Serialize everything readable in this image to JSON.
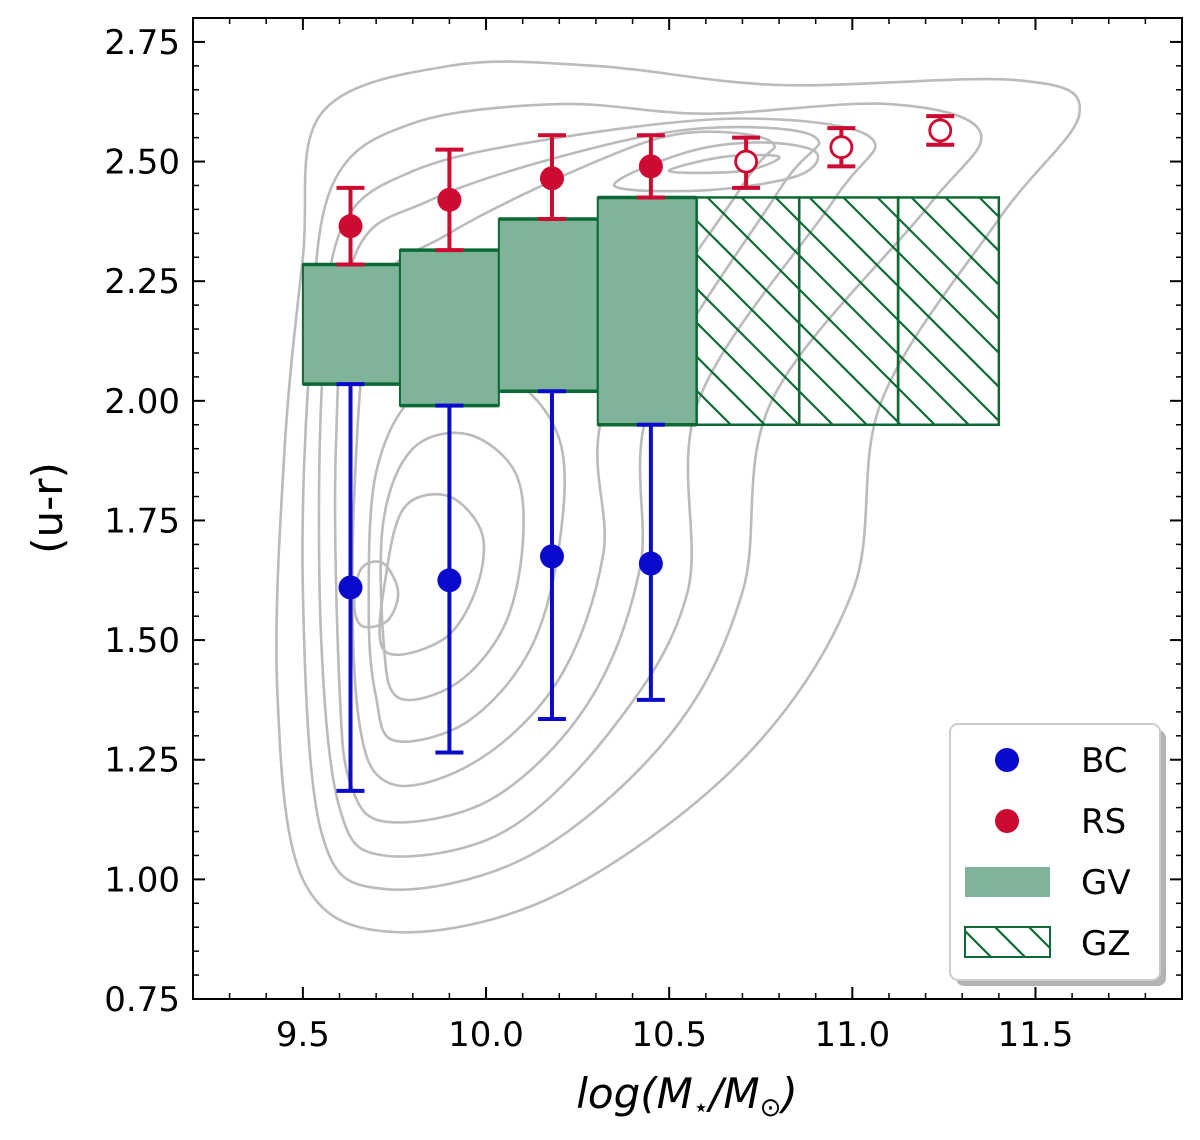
{
  "chart_data": {
    "type": "scatter",
    "title": "",
    "xlabel": "log(M⋆/M⊙)",
    "xlabel_parts": {
      "pre": "log(M",
      "sub1": "⋆",
      "mid": "/M",
      "sub2": "⊙",
      "post": ")"
    },
    "ylabel": "(u-r)",
    "xlim": [
      9.2,
      11.9
    ],
    "ylim": [
      0.75,
      2.8
    ],
    "xticks": [
      9.5,
      10.0,
      10.5,
      11.0,
      11.5
    ],
    "xtick_labels": [
      "9.5",
      "10.0",
      "10.5",
      "11.0",
      "11.5"
    ],
    "yticks": [
      0.75,
      1.0,
      1.25,
      1.5,
      1.75,
      2.0,
      2.25,
      2.5,
      2.75
    ],
    "ytick_labels": [
      "0.75",
      "1.00",
      "1.25",
      "1.50",
      "1.75",
      "2.00",
      "2.25",
      "2.50",
      "2.75"
    ],
    "grid": false,
    "legend_position": "bottom-right",
    "colors": {
      "BC": "#0a0acc",
      "RS": "#cc0a32",
      "GV_fill": "#7fb39a",
      "GV_edge": "#0b6a34",
      "contour": "#bbbbbb"
    },
    "series": [
      {
        "name": "BC",
        "points": [
          {
            "x": 9.63,
            "y": 1.61,
            "lo": 1.185,
            "hi": 2.035
          },
          {
            "x": 9.9,
            "y": 1.625,
            "lo": 1.265,
            "hi": 1.99
          },
          {
            "x": 10.18,
            "y": 1.675,
            "lo": 1.335,
            "hi": 2.02
          },
          {
            "x": 10.45,
            "y": 1.66,
            "lo": 1.375,
            "hi": 1.95
          }
        ]
      },
      {
        "name": "RS",
        "points": [
          {
            "x": 9.63,
            "y": 2.365,
            "lo": 2.285,
            "hi": 2.445,
            "open": false
          },
          {
            "x": 9.9,
            "y": 2.42,
            "lo": 2.315,
            "hi": 2.525,
            "open": false
          },
          {
            "x": 10.18,
            "y": 2.465,
            "lo": 2.38,
            "hi": 2.555,
            "open": false
          },
          {
            "x": 10.45,
            "y": 2.49,
            "lo": 2.425,
            "hi": 2.555,
            "open": false
          },
          {
            "x": 10.71,
            "y": 2.5,
            "lo": 2.445,
            "hi": 2.55,
            "open": true
          },
          {
            "x": 10.97,
            "y": 2.53,
            "lo": 2.49,
            "hi": 2.57,
            "open": true
          },
          {
            "x": 11.24,
            "y": 2.565,
            "lo": 2.535,
            "hi": 2.595,
            "open": true
          }
        ]
      },
      {
        "name": "GV",
        "bins": [
          {
            "x0": 9.5,
            "x1": 9.765,
            "ylo": 2.035,
            "yhi": 2.285
          },
          {
            "x0": 9.765,
            "x1": 10.035,
            "ylo": 1.99,
            "yhi": 2.315
          },
          {
            "x0": 10.035,
            "x1": 10.305,
            "ylo": 2.02,
            "yhi": 2.38
          },
          {
            "x0": 10.305,
            "x1": 10.575,
            "ylo": 1.95,
            "yhi": 2.425
          }
        ]
      },
      {
        "name": "GZ",
        "bins": [
          {
            "x0": 10.575,
            "x1": 10.855,
            "ylo": 1.95,
            "yhi": 2.425
          },
          {
            "x0": 10.855,
            "x1": 11.125,
            "ylo": 1.95,
            "yhi": 2.425
          },
          {
            "x0": 11.125,
            "x1": 11.4,
            "ylo": 1.95,
            "yhi": 2.425
          }
        ]
      }
    ],
    "contours": [
      [
        [
          9.75,
          0.89
        ],
        [
          10.2,
          0.97
        ],
        [
          10.7,
          1.25
        ],
        [
          11.0,
          1.6
        ],
        [
          11.08,
          2.0
        ],
        [
          11.4,
          2.38
        ],
        [
          11.62,
          2.6
        ],
        [
          11.45,
          2.67
        ],
        [
          10.8,
          2.66
        ],
        [
          10.3,
          2.7
        ],
        [
          9.9,
          2.7
        ],
        [
          9.55,
          2.6
        ],
        [
          9.5,
          2.3
        ],
        [
          9.45,
          1.9
        ],
        [
          9.43,
          1.4
        ],
        [
          9.5,
          1.0
        ]
      ],
      [
        [
          9.72,
          0.98
        ],
        [
          10.12,
          1.05
        ],
        [
          10.5,
          1.3
        ],
        [
          10.7,
          1.6
        ],
        [
          10.78,
          2.0
        ],
        [
          11.2,
          2.4
        ],
        [
          11.35,
          2.56
        ],
        [
          11.1,
          2.62
        ],
        [
          10.6,
          2.6
        ],
        [
          10.2,
          2.62
        ],
        [
          9.8,
          2.58
        ],
        [
          9.58,
          2.45
        ],
        [
          9.52,
          2.1
        ],
        [
          9.5,
          1.6
        ],
        [
          9.55,
          1.1
        ]
      ],
      [
        [
          9.72,
          1.05
        ],
        [
          10.05,
          1.1
        ],
        [
          10.35,
          1.32
        ],
        [
          10.55,
          1.6
        ],
        [
          10.58,
          2.0
        ],
        [
          10.95,
          2.42
        ],
        [
          11.05,
          2.55
        ],
        [
          10.7,
          2.59
        ],
        [
          10.2,
          2.55
        ],
        [
          9.8,
          2.48
        ],
        [
          9.6,
          2.35
        ],
        [
          9.55,
          2.0
        ],
        [
          9.55,
          1.5
        ],
        [
          9.6,
          1.15
        ]
      ],
      [
        [
          9.73,
          1.12
        ],
        [
          10.02,
          1.17
        ],
        [
          10.28,
          1.37
        ],
        [
          10.42,
          1.65
        ],
        [
          10.45,
          2.0
        ],
        [
          10.8,
          2.44
        ],
        [
          10.9,
          2.55
        ],
        [
          10.6,
          2.57
        ],
        [
          10.25,
          2.52
        ],
        [
          9.85,
          2.42
        ],
        [
          9.64,
          2.3
        ],
        [
          9.59,
          1.9
        ],
        [
          9.6,
          1.4
        ],
        [
          9.63,
          1.2
        ]
      ],
      [
        [
          9.74,
          1.2
        ],
        [
          9.98,
          1.25
        ],
        [
          10.2,
          1.42
        ],
        [
          10.32,
          1.68
        ],
        [
          10.33,
          2.0
        ],
        [
          10.7,
          2.45
        ],
        [
          10.78,
          2.54
        ],
        [
          10.55,
          2.56
        ],
        [
          10.3,
          2.5
        ],
        [
          9.9,
          2.35
        ],
        [
          9.7,
          2.22
        ],
        [
          9.64,
          1.8
        ],
        [
          9.65,
          1.35
        ]
      ],
      [
        [
          9.75,
          1.29
        ],
        [
          9.95,
          1.33
        ],
        [
          10.12,
          1.48
        ],
        [
          10.2,
          1.7
        ],
        [
          10.2,
          1.92
        ],
        [
          10.05,
          2.05
        ],
        [
          9.82,
          2.02
        ],
        [
          9.7,
          1.85
        ],
        [
          9.68,
          1.55
        ],
        [
          9.7,
          1.38
        ]
      ],
      [
        [
          9.76,
          1.38
        ],
        [
          9.92,
          1.41
        ],
        [
          10.05,
          1.53
        ],
        [
          10.1,
          1.7
        ],
        [
          10.08,
          1.85
        ],
        [
          9.95,
          1.93
        ],
        [
          9.8,
          1.9
        ],
        [
          9.72,
          1.75
        ],
        [
          9.72,
          1.5
        ]
      ],
      [
        [
          9.72,
          1.48
        ],
        [
          9.88,
          1.5
        ],
        [
          9.97,
          1.6
        ],
        [
          9.99,
          1.72
        ],
        [
          9.9,
          1.8
        ],
        [
          9.78,
          1.78
        ],
        [
          9.73,
          1.65
        ]
      ],
      [
        [
          9.66,
          1.53
        ],
        [
          9.73,
          1.54
        ],
        [
          9.76,
          1.6
        ],
        [
          9.72,
          1.66
        ],
        [
          9.66,
          1.65
        ],
        [
          9.64,
          1.58
        ]
      ],
      [
        [
          10.35,
          2.45
        ],
        [
          10.55,
          2.52
        ],
        [
          10.75,
          2.54
        ],
        [
          10.9,
          2.52
        ],
        [
          10.85,
          2.47
        ],
        [
          10.6,
          2.44
        ]
      ],
      [
        [
          10.5,
          2.48
        ],
        [
          10.65,
          2.51
        ],
        [
          10.8,
          2.51
        ],
        [
          10.7,
          2.48
        ]
      ]
    ]
  },
  "legend": {
    "items": [
      {
        "label": "BC",
        "kind": "marker",
        "color": "#0a0acc"
      },
      {
        "label": "RS",
        "kind": "marker",
        "color": "#cc0a32"
      },
      {
        "label": "GV",
        "kind": "fill",
        "color": "#7fb39a"
      },
      {
        "label": "GZ",
        "kind": "hatch",
        "color": "#0b6a34"
      }
    ]
  }
}
